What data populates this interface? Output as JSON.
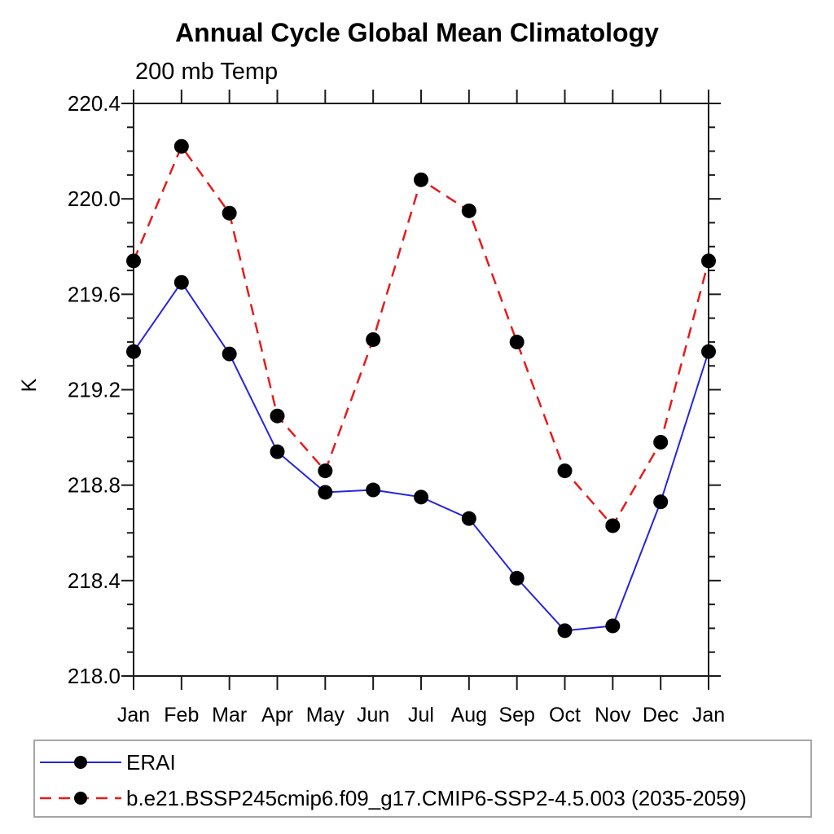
{
  "chart_data": {
    "type": "line",
    "title": "Annual Cycle Global Mean Climatology",
    "subtitle": "200 mb Temp",
    "xlabel": "",
    "ylabel": "K",
    "categories": [
      "Jan",
      "Feb",
      "Mar",
      "Apr",
      "May",
      "Jun",
      "Jul",
      "Aug",
      "Sep",
      "Oct",
      "Nov",
      "Dec",
      "Jan"
    ],
    "ylim": [
      218.0,
      220.4
    ],
    "y_major_step": 0.4,
    "y_minor_step": 0.1,
    "y_tick_labels": [
      "218.0",
      "218.4",
      "218.8",
      "219.2",
      "219.6",
      "220.0",
      "220.4"
    ],
    "grid": false,
    "axis_color": "#1a1a1a",
    "legend_position": "bottom-left-box",
    "series": [
      {
        "name": "ERAI",
        "line_color": "#2525dd",
        "line_style": "solid",
        "marker": "filled-circle",
        "marker_color": "#000000",
        "values": [
          219.36,
          219.65,
          219.35,
          218.94,
          218.77,
          218.78,
          218.75,
          218.66,
          218.41,
          218.19,
          218.21,
          218.73,
          219.36
        ]
      },
      {
        "name": "b.e21.BSSP245cmip6.f09_g17.CMIP6-SSP2-4.5.003 (2035-2059)",
        "line_color": "#e81b1b",
        "line_style": "dashed",
        "marker": "filled-circle",
        "marker_color": "#000000",
        "values": [
          219.74,
          220.22,
          219.94,
          219.09,
          218.86,
          219.41,
          220.08,
          219.95,
          219.4,
          218.86,
          218.63,
          218.98,
          219.74
        ]
      }
    ]
  }
}
